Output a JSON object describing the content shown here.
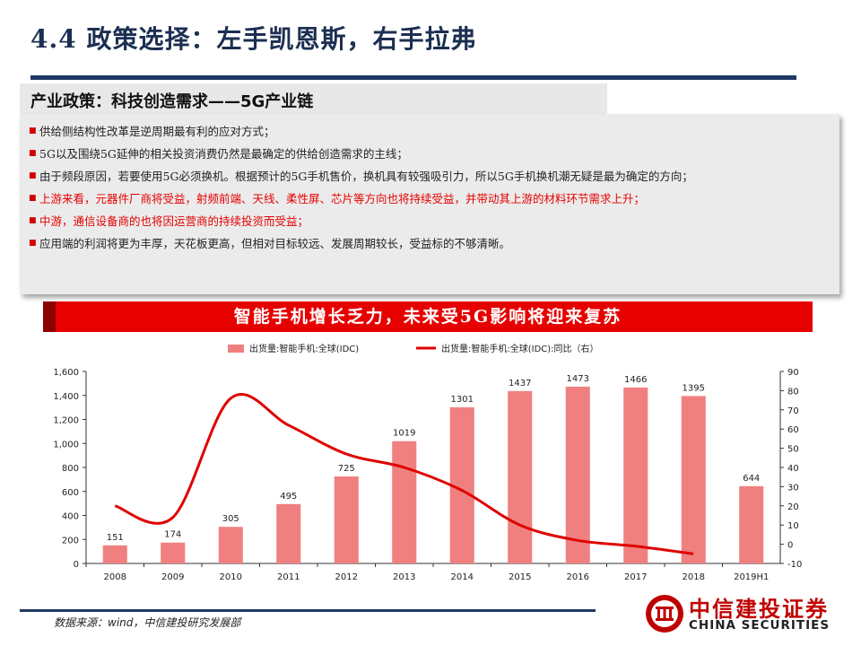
{
  "header": {
    "title": "4.4 政策选择：左手凯恩斯，右手拉弗"
  },
  "policy": {
    "heading": "产业政策：科技创造需求——5G产业链",
    "bullets": [
      {
        "text": "供给侧结构性改革是逆周期最有利的应对方式；",
        "emphasis": false
      },
      {
        "text": "5G以及围绕5G延伸的相关投资消费仍然是最确定的供给创造需求的主线；",
        "emphasis": false
      },
      {
        "text": "由于频段原因，若要使用5G必须换机。根据预计的5G手机售价，换机具有较强吸引力，所以5G手机换机潮无疑是最为确定的方向；",
        "emphasis": false
      },
      {
        "text": "上游来看，元器件厂商将受益，射频前端、天线、柔性屏、芯片等方向也将持续受益，并带动其上游的材料环节需求上升；",
        "emphasis": true
      },
      {
        "text": "中游，通信设备商的也将因运营商的持续投资而受益；",
        "emphasis": true
      },
      {
        "text": "应用端的利润将更为丰厚，天花板更高，但相对目标较远、发展周期较长，受益标的不够清晰。",
        "emphasis": false
      }
    ]
  },
  "banner": {
    "text": "智能手机增长乏力，未来受5G影响将迎来复苏"
  },
  "chart_data": {
    "type": "bar",
    "categories": [
      "2008",
      "2009",
      "2010",
      "2011",
      "2012",
      "2013",
      "2014",
      "2015",
      "2016",
      "2017",
      "2018",
      "2019H1"
    ],
    "series": [
      {
        "name": "出货量:智能手机:全球(IDC)",
        "type": "bar",
        "axis": "left",
        "color": "#f08080",
        "values": [
          151,
          174,
          305,
          495,
          725,
          1019,
          1301,
          1437,
          1473,
          1466,
          1395,
          644
        ]
      },
      {
        "name": "出货量:智能手机:全球(IDC):同比（右）",
        "type": "line",
        "axis": "right",
        "color": "#e00000",
        "values": [
          20,
          14,
          76,
          62,
          47,
          40,
          28,
          10,
          2,
          -1,
          -5,
          null
        ]
      }
    ],
    "bar_labels": [
      "151",
      "174",
      "305",
      "495",
      "725",
      "1019",
      "1301",
      "1437",
      "1473",
      "1466",
      "1395",
      "644"
    ],
    "y_left": {
      "range": [
        0,
        1600
      ],
      "ticks": [
        "0",
        "200",
        "400",
        "600",
        "800",
        "1,000",
        "1,200",
        "1,400",
        "1,600"
      ]
    },
    "y_right": {
      "range": [
        -10,
        90
      ],
      "ticks": [
        "-10",
        "0",
        "10",
        "20",
        "30",
        "40",
        "50",
        "60",
        "70",
        "80",
        "90"
      ]
    },
    "legend_position": "top",
    "grid": false
  },
  "footer": {
    "source": "数据来源：wind，中信建投研究发展部",
    "logo_cn": "中信建投证券",
    "logo_en": "CHINA SECURITIES"
  },
  "colors": {
    "accent": "#e60000",
    "navy": "#1f3864",
    "bar": "#f08080",
    "line": "#e00000"
  }
}
